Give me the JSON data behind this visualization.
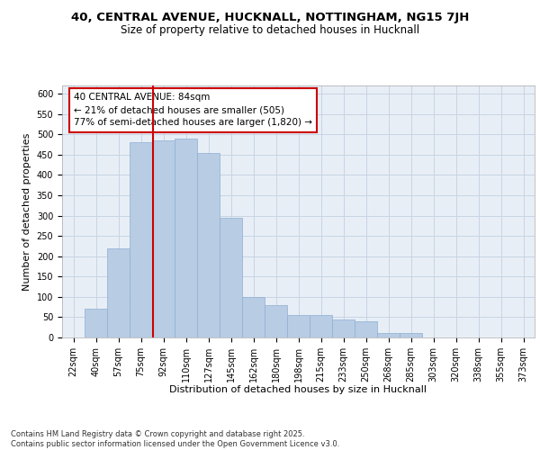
{
  "title_line1": "40, CENTRAL AVENUE, HUCKNALL, NOTTINGHAM, NG15 7JH",
  "title_line2": "Size of property relative to detached houses in Hucknall",
  "xlabel": "Distribution of detached houses by size in Hucknall",
  "ylabel": "Number of detached properties",
  "categories": [
    "22sqm",
    "40sqm",
    "57sqm",
    "75sqm",
    "92sqm",
    "110sqm",
    "127sqm",
    "145sqm",
    "162sqm",
    "180sqm",
    "198sqm",
    "215sqm",
    "233sqm",
    "250sqm",
    "268sqm",
    "285sqm",
    "303sqm",
    "320sqm",
    "338sqm",
    "355sqm",
    "373sqm"
  ],
  "values": [
    0,
    70,
    220,
    480,
    485,
    490,
    455,
    295,
    100,
    80,
    55,
    55,
    45,
    40,
    10,
    10,
    0,
    0,
    0,
    0,
    0
  ],
  "bar_color": "#b8cce4",
  "bar_edge_color": "#8eafd4",
  "grid_color": "#c8d4e4",
  "background_color": "#e8eef6",
  "vline_color": "#cc0000",
  "annotation_box_text": "40 CENTRAL AVENUE: 84sqm\n← 21% of detached houses are smaller (505)\n77% of semi-detached houses are larger (1,820) →",
  "annotation_box_color": "#cc0000",
  "ylim": [
    0,
    620
  ],
  "yticks": [
    0,
    50,
    100,
    150,
    200,
    250,
    300,
    350,
    400,
    450,
    500,
    550,
    600
  ],
  "footer_text": "Contains HM Land Registry data © Crown copyright and database right 2025.\nContains public sector information licensed under the Open Government Licence v3.0.",
  "title_fontsize": 9.5,
  "subtitle_fontsize": 8.5,
  "axis_label_fontsize": 8,
  "tick_fontsize": 7,
  "annotation_fontsize": 7.5,
  "footer_fontsize": 6
}
